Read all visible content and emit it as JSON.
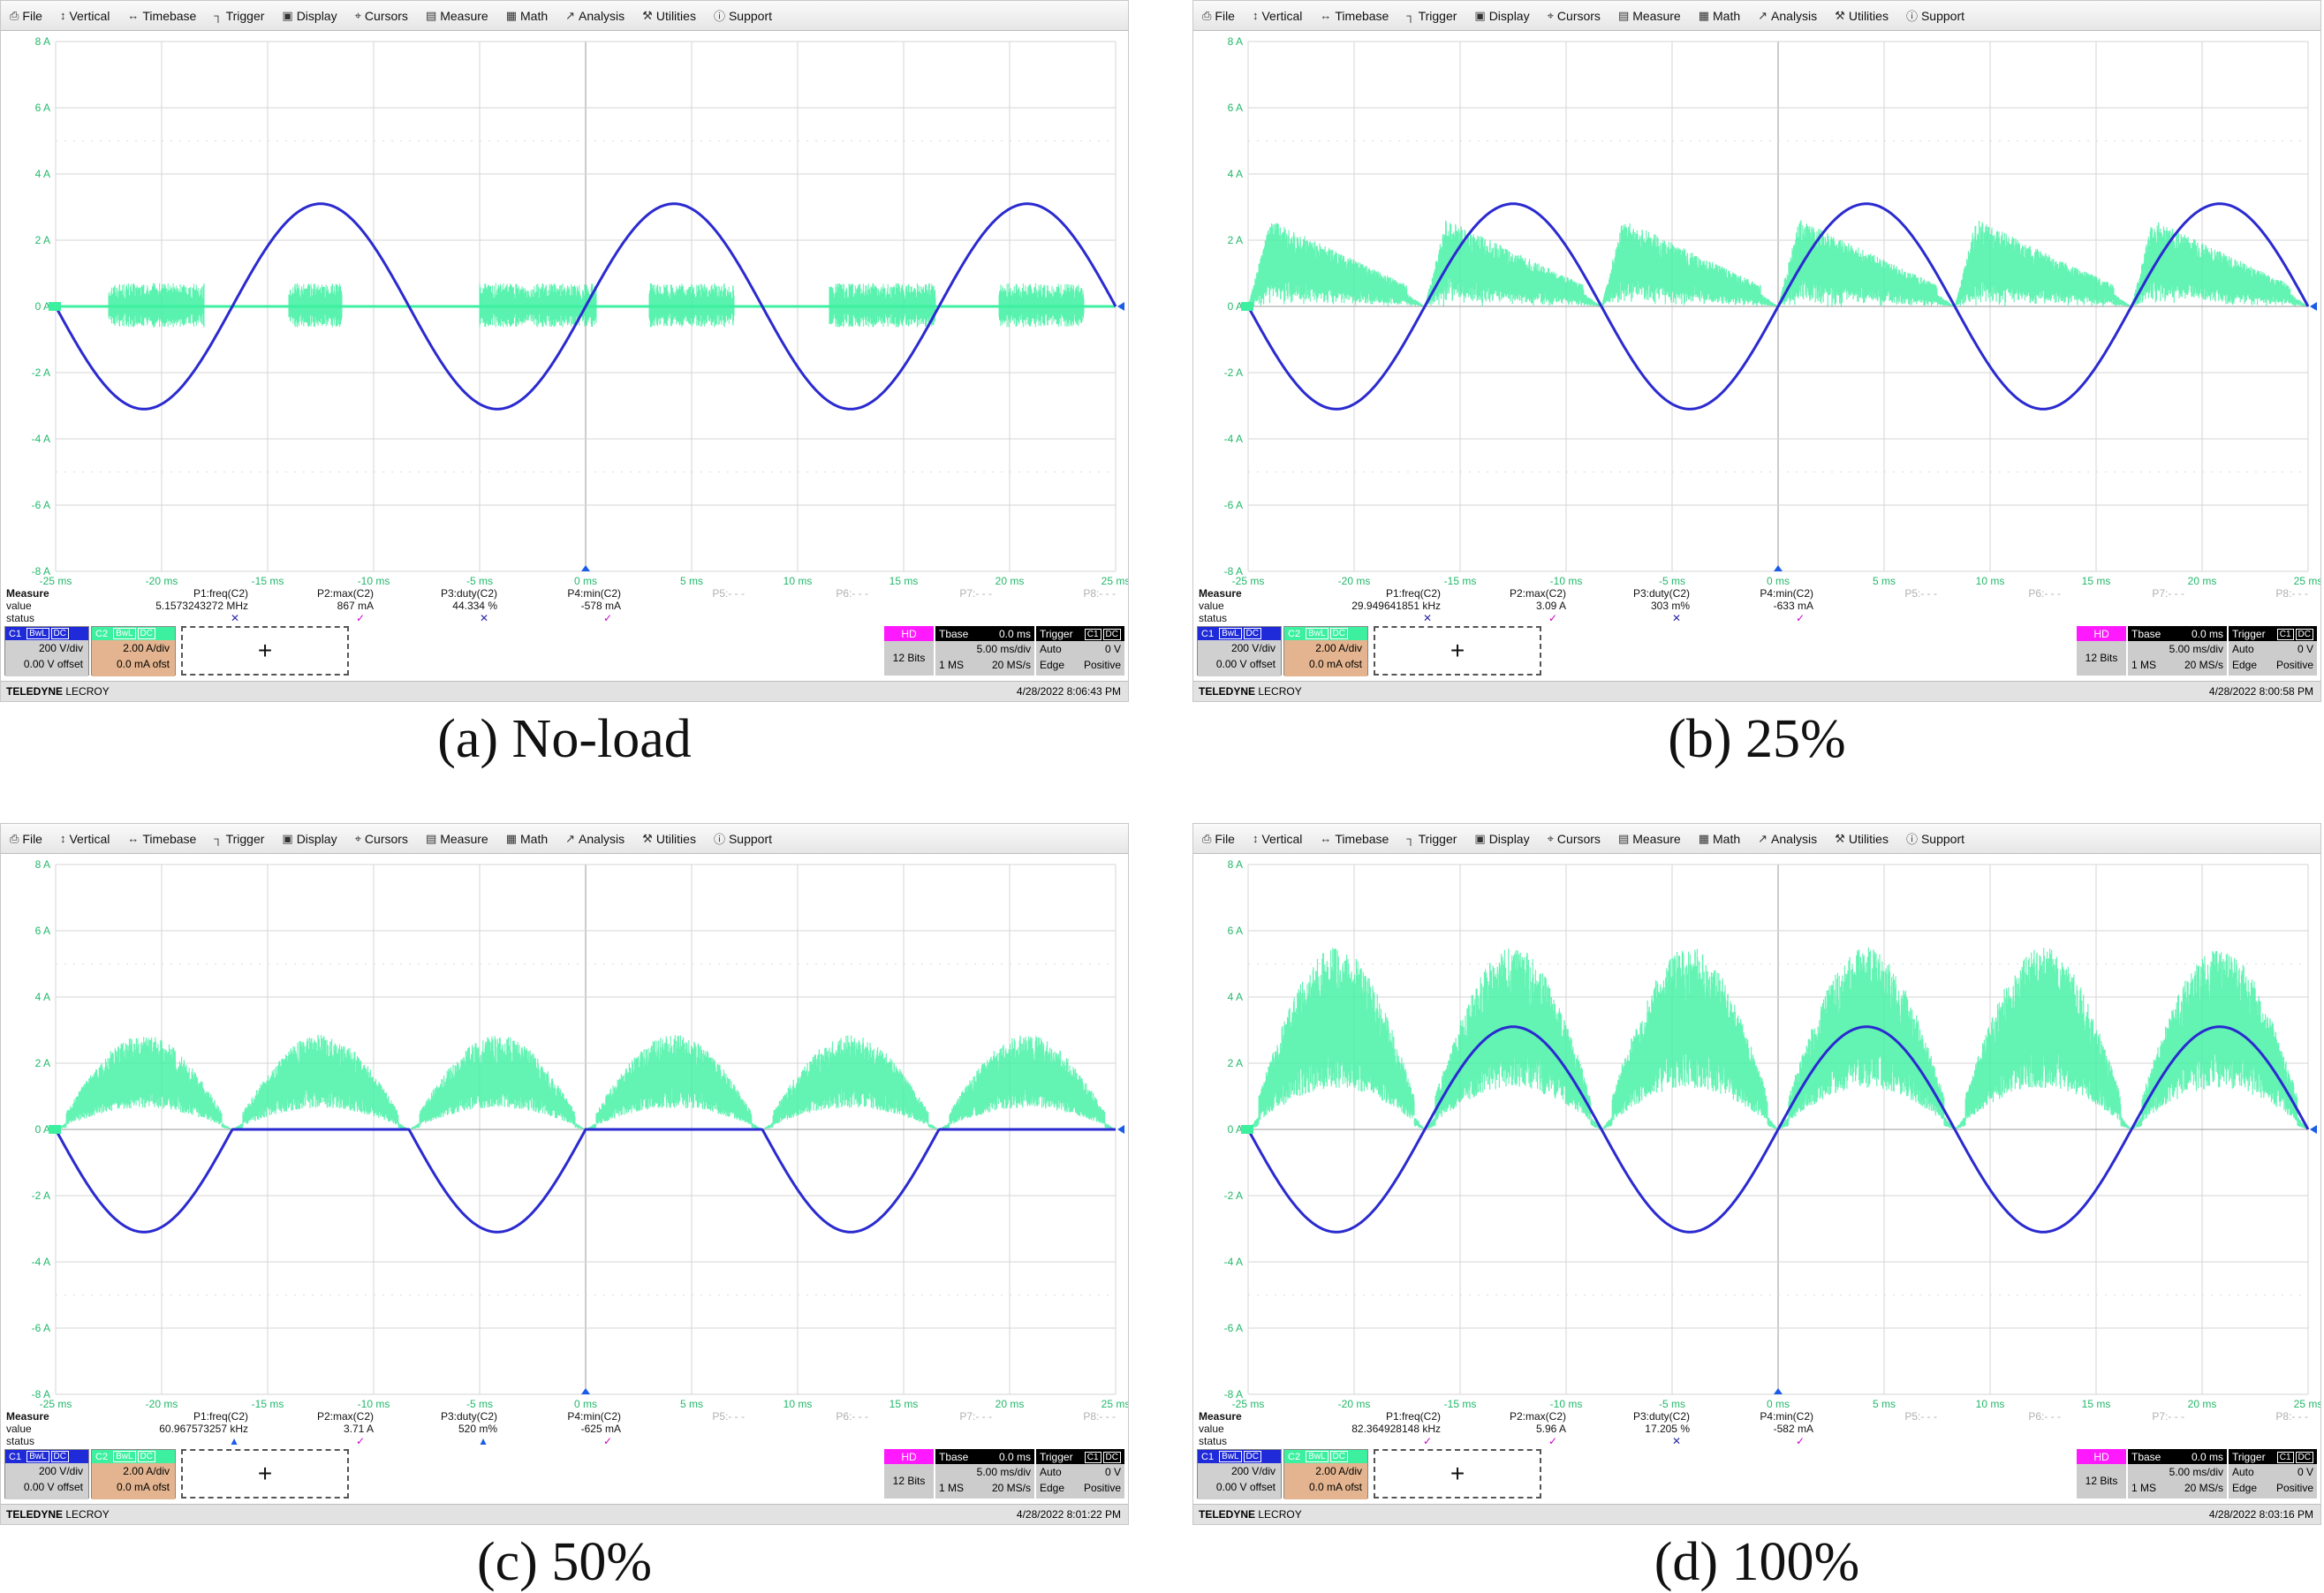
{
  "menu": [
    {
      "label": "File",
      "icon": "file-icon"
    },
    {
      "label": "Vertical",
      "icon": "vertical-arrows-icon"
    },
    {
      "label": "Timebase",
      "icon": "horizontal-arrows-icon"
    },
    {
      "label": "Trigger",
      "icon": "trigger-icon"
    },
    {
      "label": "Display",
      "icon": "display-icon"
    },
    {
      "label": "Cursors",
      "icon": "cursor-icon"
    },
    {
      "label": "Measure",
      "icon": "measure-icon"
    },
    {
      "label": "Math",
      "icon": "math-icon"
    },
    {
      "label": "Analysis",
      "icon": "analysis-icon"
    },
    {
      "label": "Utilities",
      "icon": "utilities-icon"
    },
    {
      "label": "Support",
      "icon": "support-icon"
    }
  ],
  "y_axis_labels": [
    "8 A",
    "6 A",
    "4 A",
    "2 A",
    "0 A",
    "-2 A",
    "-4 A",
    "-6 A",
    "-8 A"
  ],
  "x_axis_labels": [
    "-25 ms",
    "-20 ms",
    "-15 ms",
    "-10 ms",
    "-5 ms",
    "0 ms",
    "5 ms",
    "10 ms",
    "15 ms",
    "20 ms",
    "25 ms"
  ],
  "measure": {
    "title": "Measure",
    "value_label": "value",
    "status_label": "status",
    "params": [
      "P1:freq(C2)",
      "P2:max(C2)",
      "P3:duty(C2)",
      "P4:min(C2)",
      "P5:- - -",
      "P6:- - -",
      "P7:- - -",
      "P8:- - -"
    ]
  },
  "channels": {
    "c1": {
      "name": "C1",
      "bwl": "BwL",
      "dc": "DC",
      "scale": "200 V/div",
      "offset": "0.00 V offset"
    },
    "c2": {
      "name": "C2",
      "bwl": "BwL",
      "dc": "DC",
      "scale": "2.00 A/div",
      "offset": "0.0 mA ofst"
    },
    "add": "+"
  },
  "hd": {
    "label": "HD",
    "bits": "12 Bits"
  },
  "tbase": {
    "label": "Tbase",
    "value": "0.0 ms",
    "scale": "5.00 ms/div",
    "samples": "1 MS",
    "rate": "20 MS/s"
  },
  "trigger": {
    "label": "Trigger",
    "c1": "C1",
    "dc": "DC",
    "mode": "Auto",
    "level": "0 V",
    "type": "Edge",
    "slope": "Positive"
  },
  "brand": {
    "name": "TELEDYNE",
    "sub": "LECROY"
  },
  "colors": {
    "c1": "#2a2ad0",
    "c2": "#3cf0a0",
    "c2_dark": "#22b86a",
    "grid": "#d6d6d6",
    "hd": "#ff19ff"
  },
  "panels": [
    {
      "caption": "(a) No-load",
      "datetime": "4/28/2022 8:06:43 PM",
      "values": [
        "5.1573243272 MHz",
        "867 mA",
        "44.334 %",
        "-578 mA"
      ],
      "status": [
        "x",
        "ok",
        "x",
        "ok"
      ],
      "chart_data": {
        "type": "line",
        "xlabel": "",
        "ylabel": "",
        "xlim": [
          -25,
          25
        ],
        "ylim": [
          -8,
          8
        ],
        "series": [
          {
            "kind": "sine",
            "amplitude": 3.1,
            "period_ms": 16.667,
            "phase_ms": -25,
            "color": "c1"
          },
          {
            "kind": "noise-bursts",
            "bursts": [
              [
                -22.5,
                -18
              ],
              [
                -14,
                -11.5
              ],
              [
                -5,
                0.5
              ],
              [
                3,
                7
              ],
              [
                11.5,
                16.5
              ],
              [
                19.5,
                23.5
              ]
            ],
            "amp": 0.7,
            "color": "c2"
          }
        ]
      }
    },
    {
      "caption": "(b) 25%",
      "datetime": "4/28/2022 8:00:58 PM",
      "values": [
        "29.949641851 kHz",
        "3.09 A",
        "303 m%",
        "-633 mA"
      ],
      "status": [
        "x",
        "ok",
        "x",
        "ok"
      ],
      "chart_data": {
        "type": "line",
        "xlabel": "",
        "ylabel": "",
        "xlim": [
          -25,
          25
        ],
        "ylim": [
          -8,
          8
        ],
        "series": [
          {
            "kind": "sine",
            "amplitude": 3.1,
            "period_ms": 16.667,
            "phase_ms": -25,
            "color": "c1"
          },
          {
            "kind": "sawtooth-band",
            "peak": 2.4,
            "half_period_ms": 8.333,
            "start_ms": -25,
            "color": "c2"
          }
        ]
      }
    },
    {
      "caption": "(c) 50%",
      "datetime": "4/28/2022 8:01:22 PM",
      "values": [
        "60.967573257 kHz",
        "3.71 A",
        "520 m%",
        "-625 mA"
      ],
      "status": [
        "tri",
        "ok",
        "tri",
        "ok"
      ],
      "chart_data": {
        "type": "line",
        "xlabel": "",
        "ylabel": "",
        "xlim": [
          -25,
          25
        ],
        "ylim": [
          -8,
          8
        ],
        "series": [
          {
            "kind": "neg-half-sine",
            "amplitude": 3.1,
            "period_ms": 16.667,
            "phase_ms": -25,
            "color": "c1"
          },
          {
            "kind": "rectified-band",
            "peak": 2.6,
            "half_period_ms": 8.333,
            "start_ms": -25,
            "color": "c2"
          }
        ]
      }
    },
    {
      "caption": "(d) 100%",
      "datetime": "4/28/2022 8:03:16 PM",
      "values": [
        "82.364928148 kHz",
        "5.96 A",
        "17.205 %",
        "-582 mA"
      ],
      "status": [
        "ok",
        "ok",
        "x",
        "ok"
      ],
      "chart_data": {
        "type": "line",
        "xlabel": "",
        "ylabel": "",
        "xlim": [
          -25,
          25
        ],
        "ylim": [
          -8,
          8
        ],
        "series": [
          {
            "kind": "sine",
            "amplitude": 3.1,
            "period_ms": 16.667,
            "phase_ms": -25,
            "color": "c1"
          },
          {
            "kind": "rectified-band",
            "peak": 5.0,
            "half_period_ms": 8.333,
            "start_ms": -25,
            "color": "c2"
          }
        ]
      }
    }
  ]
}
